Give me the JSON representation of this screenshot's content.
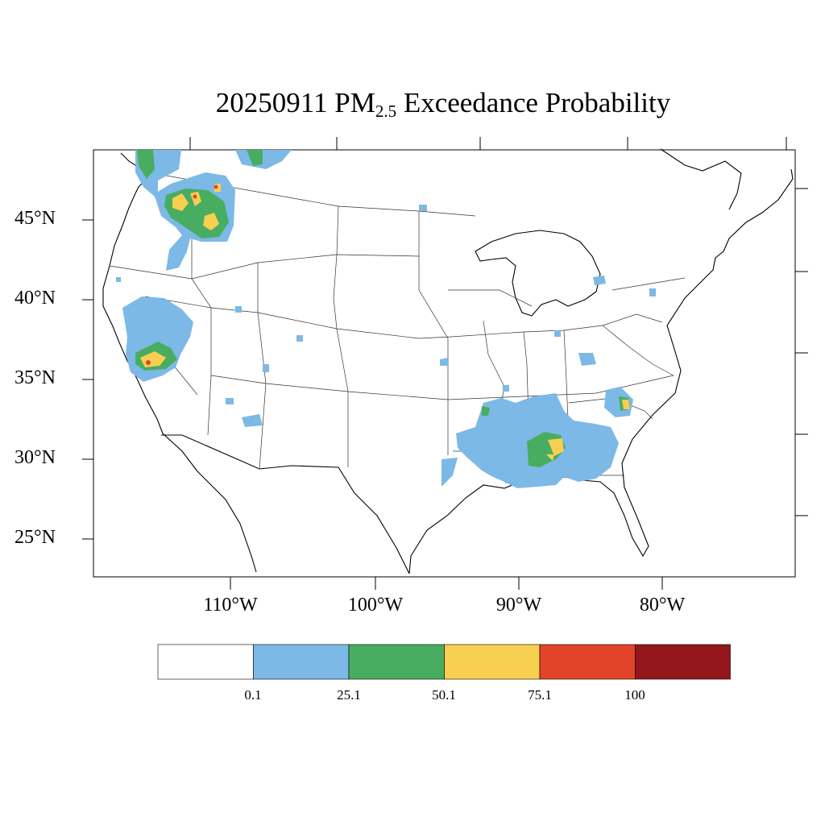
{
  "title": {
    "date": "20250911",
    "pm": "PM",
    "sub": "2.5",
    "rest": "Exceedance Probability"
  },
  "axes": {
    "lat_labels": [
      "45°N",
      "40°N",
      "35°N",
      "30°N",
      "25°N"
    ],
    "lon_labels": [
      "110°W",
      "100°W",
      "90°W",
      "80°W"
    ]
  },
  "colorbar": {
    "colors": [
      "#ffffff",
      "#7cb9e6",
      "#48ad60",
      "#f9cf52",
      "#e34329",
      "#93161c"
    ],
    "labels": [
      "0.1",
      "25.1",
      "50.1",
      "75.1",
      "100"
    ]
  },
  "map": {
    "region": "Contiguous United States",
    "shading_colors": {
      "low": "#7cb9e6",
      "mid": "#48ad60",
      "high": "#f9cf52",
      "very_high": "#e34329"
    }
  }
}
